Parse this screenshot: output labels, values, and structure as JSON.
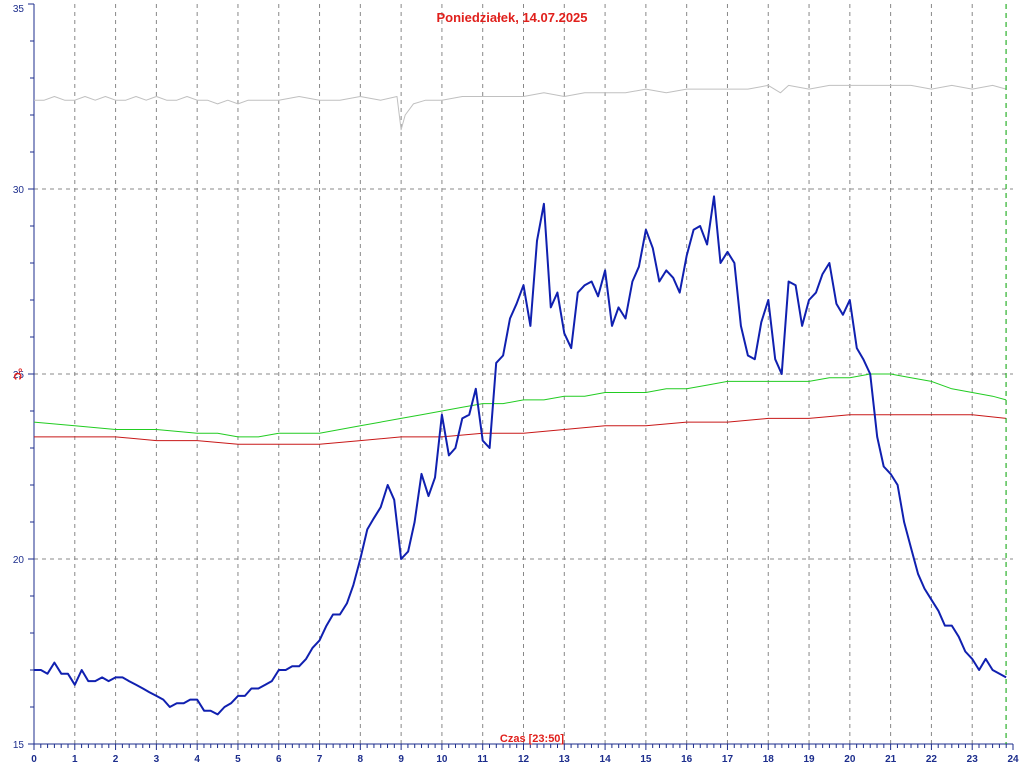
{
  "chart_data": {
    "type": "line",
    "title": "Poniedziałek, 14.07.2025",
    "xlabel": "Czas [23:50]",
    "ylabel": "°C",
    "xlim": [
      0,
      24
    ],
    "ylim": [
      15,
      35
    ],
    "x_ticks": [
      "0",
      "1",
      "2",
      "3",
      "4",
      "5",
      "6",
      "7",
      "8",
      "9",
      "10",
      "11",
      "12",
      "13",
      "14",
      "15",
      "16",
      "17",
      "18",
      "19",
      "20",
      "21",
      "22",
      "23",
      "24"
    ],
    "y_ticks": [
      15,
      20,
      25,
      30,
      35
    ],
    "grid": true,
    "colors": {
      "title": "#e0201c",
      "axis": "#1c2d8c",
      "grid": "#888888",
      "current_time": "#00a000"
    },
    "current_time_x": 23.83,
    "series": [
      {
        "color": "#c0c0c0",
        "width": 1,
        "x": [
          0,
          0.25,
          0.5,
          0.75,
          1,
          1.25,
          1.5,
          1.75,
          2,
          2.25,
          2.5,
          2.75,
          3,
          3.25,
          3.5,
          3.75,
          4,
          4.25,
          4.5,
          4.75,
          5,
          5.25,
          5.5,
          5.75,
          6,
          6.5,
          7,
          7.5,
          8,
          8.5,
          8.9,
          9,
          9.1,
          9.3,
          9.6,
          10,
          10.5,
          11,
          11.5,
          12,
          12.5,
          13,
          13.5,
          14,
          14.5,
          15,
          15.5,
          16,
          16.5,
          17,
          17.5,
          18,
          18.3,
          18.5,
          19,
          19.5,
          20,
          20.5,
          21,
          21.5,
          22,
          22.5,
          23,
          23.5,
          23.83
        ],
        "y": [
          32.4,
          32.4,
          32.5,
          32.4,
          32.4,
          32.5,
          32.4,
          32.5,
          32.4,
          32.4,
          32.5,
          32.4,
          32.5,
          32.4,
          32.4,
          32.5,
          32.4,
          32.4,
          32.3,
          32.4,
          32.3,
          32.4,
          32.4,
          32.4,
          32.4,
          32.5,
          32.4,
          32.4,
          32.5,
          32.4,
          32.5,
          31.6,
          32.0,
          32.3,
          32.4,
          32.4,
          32.5,
          32.5,
          32.5,
          32.5,
          32.6,
          32.5,
          32.6,
          32.6,
          32.6,
          32.7,
          32.6,
          32.7,
          32.7,
          32.7,
          32.7,
          32.8,
          32.6,
          32.8,
          32.7,
          32.8,
          32.8,
          32.8,
          32.8,
          32.8,
          32.7,
          32.8,
          32.7,
          32.8,
          32.7
        ]
      },
      {
        "color": "#22cc22",
        "width": 1,
        "x": [
          0,
          1,
          2,
          3,
          4,
          4.5,
          5,
          5.5,
          6,
          6.5,
          7,
          7.5,
          8,
          8.5,
          9,
          9.5,
          10,
          10.5,
          11,
          11.5,
          12,
          12.5,
          13,
          13.5,
          14,
          14.5,
          15,
          15.5,
          16,
          16.5,
          17,
          17.5,
          18,
          18.5,
          19,
          19.5,
          20,
          20.5,
          21,
          21.5,
          22,
          22.5,
          23,
          23.5,
          23.83
        ],
        "y": [
          23.7,
          23.6,
          23.5,
          23.5,
          23.4,
          23.4,
          23.3,
          23.3,
          23.4,
          23.4,
          23.4,
          23.5,
          23.6,
          23.7,
          23.8,
          23.9,
          24.0,
          24.1,
          24.2,
          24.2,
          24.3,
          24.3,
          24.4,
          24.4,
          24.5,
          24.5,
          24.5,
          24.6,
          24.6,
          24.7,
          24.8,
          24.8,
          24.8,
          24.8,
          24.8,
          24.9,
          24.9,
          25.0,
          25.0,
          24.9,
          24.8,
          24.6,
          24.5,
          24.4,
          24.3
        ]
      },
      {
        "color": "#c81818",
        "width": 1,
        "x": [
          0,
          1,
          2,
          3,
          4,
          5,
          6,
          7,
          8,
          9,
          10,
          11,
          12,
          13,
          14,
          15,
          16,
          17,
          18,
          19,
          20,
          20.5,
          21,
          22,
          23,
          23.83
        ],
        "y": [
          23.3,
          23.3,
          23.3,
          23.2,
          23.2,
          23.1,
          23.1,
          23.1,
          23.2,
          23.3,
          23.3,
          23.4,
          23.4,
          23.5,
          23.6,
          23.6,
          23.7,
          23.7,
          23.8,
          23.8,
          23.9,
          23.9,
          23.9,
          23.9,
          23.9,
          23.8
        ]
      },
      {
        "color": "#1020b0",
        "width": 2,
        "x": [
          0,
          0.17,
          0.33,
          0.5,
          0.67,
          0.83,
          1,
          1.17,
          1.33,
          1.5,
          1.67,
          1.83,
          2,
          2.17,
          2.33,
          2.5,
          2.67,
          2.83,
          3,
          3.17,
          3.33,
          3.5,
          3.67,
          3.83,
          4,
          4.17,
          4.33,
          4.5,
          4.67,
          4.83,
          5,
          5.17,
          5.33,
          5.5,
          5.67,
          5.83,
          6,
          6.17,
          6.33,
          6.5,
          6.67,
          6.83,
          7,
          7.17,
          7.33,
          7.5,
          7.67,
          7.83,
          8,
          8.17,
          8.33,
          8.5,
          8.67,
          8.83,
          9,
          9.17,
          9.33,
          9.5,
          9.67,
          9.83,
          10,
          10.17,
          10.33,
          10.5,
          10.67,
          10.83,
          11,
          11.17,
          11.33,
          11.5,
          11.67,
          11.83,
          12,
          12.17,
          12.33,
          12.5,
          12.67,
          12.83,
          13,
          13.17,
          13.33,
          13.5,
          13.67,
          13.83,
          14,
          14.17,
          14.33,
          14.5,
          14.67,
          14.83,
          15,
          15.17,
          15.33,
          15.5,
          15.67,
          15.83,
          16,
          16.17,
          16.33,
          16.5,
          16.67,
          16.83,
          17,
          17.17,
          17.33,
          17.5,
          17.67,
          17.83,
          18,
          18.17,
          18.33,
          18.5,
          18.67,
          18.83,
          19,
          19.17,
          19.33,
          19.5,
          19.67,
          19.83,
          20,
          20.17,
          20.33,
          20.5,
          20.67,
          20.83,
          21,
          21.17,
          21.33,
          21.5,
          21.67,
          21.83,
          22,
          22.17,
          22.33,
          22.5,
          22.67,
          22.83,
          23,
          23.17,
          23.33,
          23.5,
          23.67,
          23.83
        ],
        "y": [
          17.0,
          17.0,
          16.9,
          17.2,
          16.9,
          16.9,
          16.6,
          17.0,
          16.7,
          16.7,
          16.8,
          16.7,
          16.8,
          16.8,
          16.7,
          16.6,
          16.5,
          16.4,
          16.3,
          16.2,
          16.0,
          16.1,
          16.1,
          16.2,
          16.2,
          15.9,
          15.9,
          15.8,
          16.0,
          16.1,
          16.3,
          16.3,
          16.5,
          16.5,
          16.6,
          16.7,
          17.0,
          17.0,
          17.1,
          17.1,
          17.3,
          17.6,
          17.8,
          18.2,
          18.5,
          18.5,
          18.8,
          19.3,
          20.0,
          20.8,
          21.1,
          21.4,
          22.0,
          21.6,
          20.0,
          20.2,
          21.0,
          22.3,
          21.7,
          22.2,
          23.9,
          22.8,
          23.0,
          23.8,
          23.9,
          24.6,
          23.2,
          23.0,
          25.3,
          25.5,
          26.5,
          26.9,
          27.4,
          26.3,
          28.6,
          29.6,
          26.8,
          27.2,
          26.1,
          25.7,
          27.2,
          27.4,
          27.5,
          27.1,
          27.8,
          26.3,
          26.8,
          26.5,
          27.5,
          27.9,
          28.9,
          28.4,
          27.5,
          27.8,
          27.6,
          27.2,
          28.2,
          28.9,
          29.0,
          28.5,
          29.8,
          28.0,
          28.3,
          28.0,
          26.3,
          25.5,
          25.4,
          26.4,
          27.0,
          25.4,
          25.0,
          27.5,
          27.4,
          26.3,
          27.0,
          27.2,
          27.7,
          28.0,
          26.9,
          26.6,
          27.0,
          25.7,
          25.4,
          25.0,
          23.3,
          22.5,
          22.3,
          22.0,
          21.0,
          20.3,
          19.6,
          19.2,
          18.9,
          18.6,
          18.2,
          18.2,
          17.9,
          17.5,
          17.3,
          17.0,
          17.3,
          17.0,
          16.9,
          16.8
        ]
      }
    ]
  }
}
